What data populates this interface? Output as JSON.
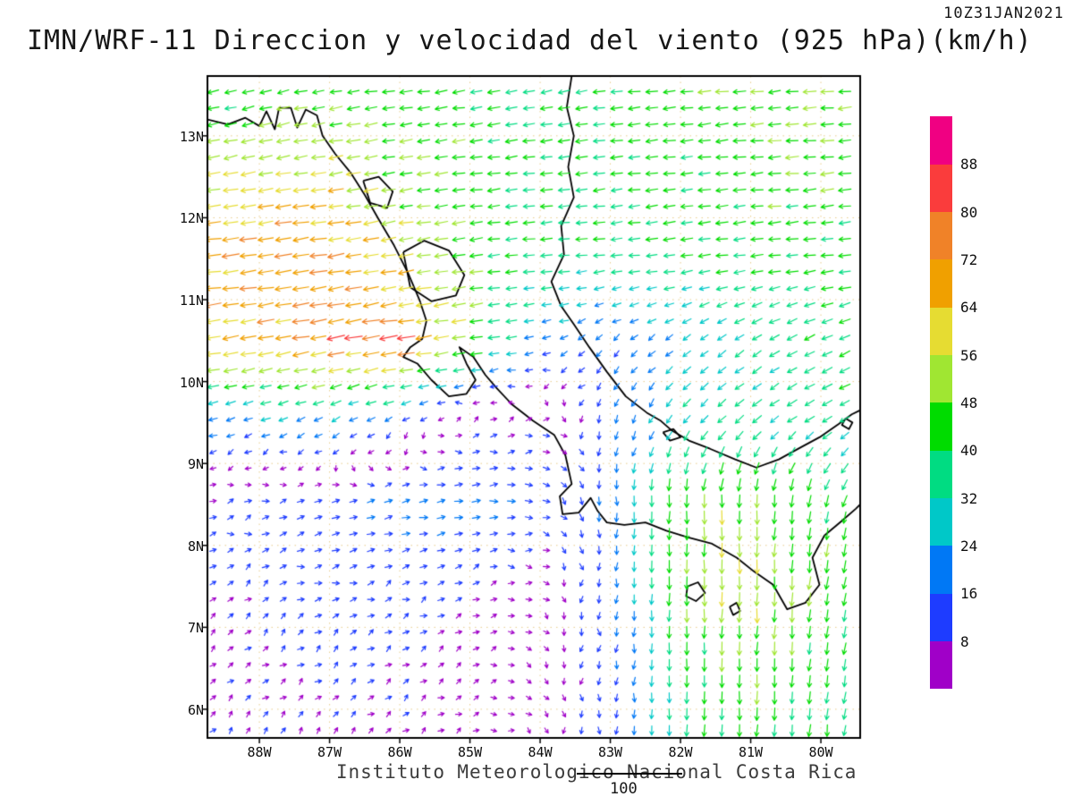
{
  "header": {
    "timestamp": "10Z31JAN2021",
    "title": "IMN/WRF-11 Direccion y velocidad del viento (925 hPa)(km/h)"
  },
  "footer": {
    "institute": "Instituto Meteorologico Nacional Costa Rica",
    "ref_vector_label": "100"
  },
  "chart_data": {
    "type": "vector-field-map",
    "title": "IMN/WRF-11 Direccion y velocidad del viento (925 hPa)(km/h)",
    "valid_time": "10Z31JAN2021",
    "units": "km/h",
    "level": "925 hPa",
    "extent": {
      "lon_min": -88.74,
      "lon_max": -79.44,
      "lat_min": 5.65,
      "lat_max": 13.73
    },
    "x_axis": {
      "ticks": [
        "88W",
        "87W",
        "86W",
        "85W",
        "84W",
        "83W",
        "82W",
        "81W",
        "80W"
      ],
      "lons": [
        -88,
        -87,
        -86,
        -85,
        -84,
        -83,
        -82,
        -81,
        -80
      ]
    },
    "y_axis": {
      "ticks": [
        "13N",
        "12N",
        "11N",
        "10N",
        "9N",
        "8N",
        "7N",
        "6N"
      ],
      "lats": [
        13,
        12,
        11,
        10,
        9,
        8,
        7,
        6
      ]
    },
    "colorbar": {
      "levels": [
        8,
        16,
        24,
        32,
        40,
        48,
        56,
        64,
        72,
        80,
        88
      ],
      "colors": [
        "#A000C8",
        "#1E3CFF",
        "#0078F5",
        "#00C8C8",
        "#00DC82",
        "#00DC00",
        "#A0E632",
        "#E6DC32",
        "#F0A000",
        "#F08228",
        "#FA3C3C",
        "#F00082"
      ]
    },
    "wind_grid": {
      "units": "km/h",
      "lons": [
        -89,
        -88,
        -87,
        -86,
        -85,
        -84,
        -83,
        -82,
        -81,
        -80,
        -79.4
      ],
      "lats": [
        13.7,
        12.5,
        11.5,
        10.5,
        9.5,
        8.5,
        7.5,
        6.5,
        5.6
      ],
      "u": [
        [
          -34,
          -38,
          -42,
          -44,
          -42,
          -40,
          -42,
          -44,
          -46,
          -48,
          -48
        ],
        [
          -52,
          -58,
          -56,
          -48,
          -44,
          -40,
          -40,
          -42,
          -44,
          -46,
          -46
        ],
        [
          -68,
          -72,
          -70,
          -58,
          -44,
          -38,
          -36,
          -38,
          -40,
          -42,
          -42
        ],
        [
          -60,
          -66,
          -74,
          -80,
          -48,
          -20,
          -12,
          -18,
          -28,
          -34,
          -36
        ],
        [
          -20,
          -22,
          -20,
          -12,
          6,
          8,
          -5,
          -20,
          -28,
          -30,
          -32
        ],
        [
          8,
          12,
          15,
          18,
          20,
          12,
          0,
          -2,
          0,
          -8,
          -15
        ],
        [
          6,
          8,
          10,
          10,
          8,
          5,
          -2,
          0,
          -2,
          -5,
          -10
        ],
        [
          5,
          6,
          7,
          7,
          5,
          3,
          -2,
          0,
          -2,
          -4,
          -6
        ],
        [
          4,
          5,
          6,
          6,
          4,
          2,
          -2,
          0,
          -2,
          -4,
          -5
        ]
      ],
      "v": [
        [
          -8,
          -10,
          -8,
          -6,
          -6,
          -8,
          -6,
          -5,
          -6,
          -5,
          -5
        ],
        [
          -10,
          -12,
          -10,
          -8,
          -6,
          -5,
          -5,
          -5,
          -5,
          -4,
          -4
        ],
        [
          -8,
          -10,
          -12,
          -10,
          -6,
          -4,
          -4,
          -4,
          -5,
          -5,
          -5
        ],
        [
          -10,
          -12,
          -14,
          -12,
          -8,
          -6,
          -10,
          -14,
          -18,
          -16,
          -15
        ],
        [
          -6,
          -8,
          -10,
          -8,
          3,
          2,
          -15,
          -25,
          -22,
          -18,
          -16
        ],
        [
          2,
          3,
          4,
          4,
          3,
          -2,
          -20,
          -48,
          -52,
          -42,
          -40
        ],
        [
          4,
          5,
          5,
          5,
          4,
          -2,
          -15,
          -50,
          -55,
          -45,
          -42
        ],
        [
          5,
          5,
          5,
          4,
          3,
          -3,
          -12,
          -40,
          -48,
          -40,
          -38
        ],
        [
          6,
          6,
          5,
          4,
          3,
          -4,
          -12,
          -35,
          -45,
          -38,
          -36
        ]
      ]
    },
    "coastline": [
      [
        [
          -88.74,
          13.2
        ],
        [
          -88.45,
          13.14
        ],
        [
          -88.2,
          13.22
        ],
        [
          -88.0,
          13.12
        ],
        [
          -87.9,
          13.3
        ],
        [
          -87.78,
          13.08
        ],
        [
          -87.72,
          13.34
        ],
        [
          -87.55,
          13.34
        ],
        [
          -87.46,
          13.1
        ],
        [
          -87.34,
          13.32
        ],
        [
          -87.18,
          13.25
        ],
        [
          -87.1,
          13.0
        ],
        [
          -86.92,
          12.78
        ],
        [
          -86.7,
          12.55
        ],
        [
          -86.5,
          12.28
        ],
        [
          -86.3,
          11.98
        ],
        [
          -86.08,
          11.66
        ],
        [
          -85.88,
          11.32
        ],
        [
          -85.72,
          11.0
        ],
        [
          -85.62,
          10.74
        ],
        [
          -85.68,
          10.52
        ],
        [
          -85.85,
          10.42
        ],
        [
          -85.95,
          10.3
        ],
        [
          -85.75,
          10.22
        ],
        [
          -85.55,
          10.02
        ],
        [
          -85.3,
          9.82
        ],
        [
          -85.05,
          9.85
        ],
        [
          -84.92,
          10.02
        ],
        [
          -85.05,
          10.22
        ],
        [
          -85.15,
          10.42
        ],
        [
          -84.95,
          10.3
        ],
        [
          -84.78,
          10.08
        ],
        [
          -84.62,
          9.92
        ],
        [
          -84.4,
          9.72
        ],
        [
          -84.1,
          9.52
        ],
        [
          -83.8,
          9.35
        ],
        [
          -83.64,
          9.1
        ],
        [
          -83.55,
          8.75
        ],
        [
          -83.72,
          8.6
        ],
        [
          -83.68,
          8.38
        ],
        [
          -83.45,
          8.4
        ],
        [
          -83.28,
          8.58
        ],
        [
          -83.18,
          8.42
        ],
        [
          -83.05,
          8.28
        ],
        [
          -82.8,
          8.25
        ],
        [
          -82.5,
          8.28
        ],
        [
          -82.2,
          8.18
        ],
        [
          -81.9,
          8.1
        ],
        [
          -81.55,
          8.02
        ],
        [
          -81.2,
          7.85
        ],
        [
          -80.95,
          7.68
        ],
        [
          -80.68,
          7.52
        ],
        [
          -80.48,
          7.22
        ],
        [
          -80.22,
          7.3
        ],
        [
          -80.02,
          7.52
        ],
        [
          -80.12,
          7.85
        ],
        [
          -79.95,
          8.12
        ],
        [
          -79.7,
          8.3
        ],
        [
          -79.5,
          8.45
        ],
        [
          -79.44,
          8.5
        ]
      ],
      [
        [
          -83.55,
          13.73
        ],
        [
          -83.62,
          13.35
        ],
        [
          -83.52,
          13.0
        ],
        [
          -83.6,
          12.62
        ],
        [
          -83.52,
          12.25
        ],
        [
          -83.7,
          11.9
        ],
        [
          -83.66,
          11.55
        ],
        [
          -83.84,
          11.22
        ],
        [
          -83.7,
          10.92
        ],
        [
          -83.52,
          10.7
        ],
        [
          -83.3,
          10.42
        ],
        [
          -83.05,
          10.12
        ],
        [
          -82.78,
          9.82
        ],
        [
          -82.48,
          9.62
        ],
        [
          -82.28,
          9.52
        ],
        [
          -82.12,
          9.4
        ],
        [
          -81.88,
          9.28
        ],
        [
          -81.58,
          9.18
        ],
        [
          -81.22,
          9.05
        ],
        [
          -80.92,
          8.95
        ],
        [
          -80.6,
          9.05
        ],
        [
          -80.28,
          9.2
        ],
        [
          -80.02,
          9.32
        ],
        [
          -79.75,
          9.48
        ],
        [
          -79.56,
          9.6
        ],
        [
          -79.44,
          9.65
        ]
      ],
      [
        [
          -86.52,
          12.45
        ],
        [
          -86.3,
          12.5
        ],
        [
          -86.1,
          12.32
        ],
        [
          -86.18,
          12.12
        ],
        [
          -86.42,
          12.18
        ],
        [
          -86.52,
          12.45
        ]
      ],
      [
        [
          -85.95,
          11.58
        ],
        [
          -85.65,
          11.72
        ],
        [
          -85.3,
          11.6
        ],
        [
          -85.08,
          11.3
        ],
        [
          -85.2,
          11.05
        ],
        [
          -85.55,
          10.98
        ],
        [
          -85.85,
          11.15
        ],
        [
          -85.95,
          11.58
        ]
      ],
      [
        [
          -81.9,
          7.5
        ],
        [
          -81.75,
          7.55
        ],
        [
          -81.65,
          7.42
        ],
        [
          -81.78,
          7.32
        ],
        [
          -81.92,
          7.38
        ],
        [
          -81.9,
          7.5
        ]
      ],
      [
        [
          -81.3,
          7.25
        ],
        [
          -81.2,
          7.3
        ],
        [
          -81.15,
          7.2
        ],
        [
          -81.25,
          7.15
        ],
        [
          -81.3,
          7.25
        ]
      ],
      [
        [
          -82.25,
          9.38
        ],
        [
          -82.1,
          9.42
        ],
        [
          -82.0,
          9.32
        ],
        [
          -82.15,
          9.28
        ],
        [
          -82.25,
          9.38
        ]
      ],
      [
        [
          -79.65,
          9.55
        ],
        [
          -79.55,
          9.5
        ],
        [
          -79.6,
          9.42
        ],
        [
          -79.7,
          9.47
        ],
        [
          -79.65,
          9.55
        ]
      ]
    ],
    "grid_lines": {
      "style": "dotted",
      "lat_interval": 1,
      "lon_interval": 1
    }
  }
}
